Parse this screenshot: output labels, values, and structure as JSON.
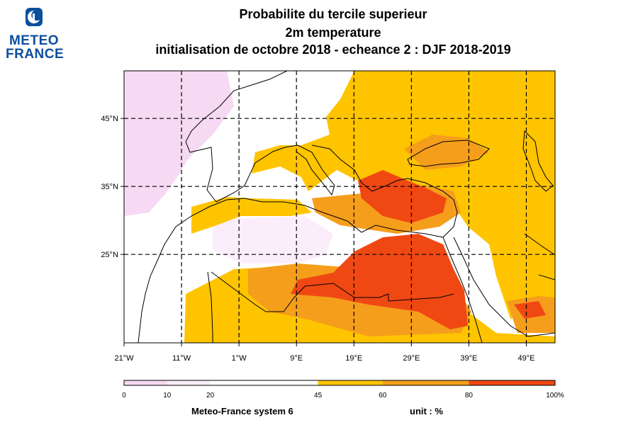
{
  "logo": {
    "line1": "METEO",
    "line2": "FRANCE"
  },
  "title": {
    "line1": "Probabilite du tercile superieur",
    "line2": "2m temperature",
    "line3": "initialisation de octobre 2018  -  echeance 2 : DJF 2018-2019"
  },
  "map": {
    "lon_range": [
      -21,
      54
    ],
    "lat_range": [
      12,
      52
    ],
    "lon_grid": [
      -11,
      -1,
      9,
      19,
      29,
      39,
      49
    ],
    "lat_grid": [
      25,
      35,
      45
    ],
    "lon_labels": [
      "21°W",
      "11°W",
      "1°W",
      "9°E",
      "19°E",
      "29°E",
      "39°E",
      "49°E"
    ],
    "lat_labels": [
      "45°N",
      "35°N",
      "25°N"
    ],
    "gridlines": "dashed"
  },
  "colorbar": {
    "ticks": [
      "0",
      "10",
      "20",
      "45",
      "60",
      "80",
      "100%"
    ],
    "bins": [
      {
        "from": 0,
        "to": 10,
        "color": "#f6d9f2"
      },
      {
        "from": 10,
        "to": 20,
        "color": "#fbeefa"
      },
      {
        "from": 20,
        "to": 45,
        "color": "#ffffff"
      },
      {
        "from": 45,
        "to": 60,
        "color": "#ffc400"
      },
      {
        "from": 60,
        "to": 80,
        "color": "#f59e1b"
      },
      {
        "from": 80,
        "to": 100,
        "color": "#f04813"
      }
    ]
  },
  "footer": {
    "left": "Meteo-France system 6",
    "right": "unit : %"
  }
}
